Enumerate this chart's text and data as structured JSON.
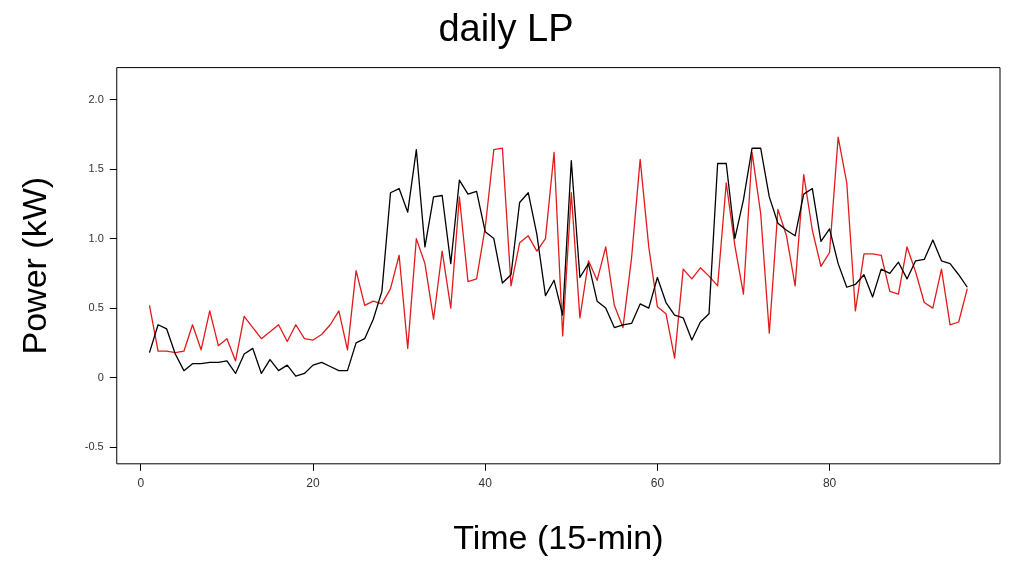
{
  "chart_data": {
    "type": "line",
    "title": "daily LP",
    "xlabel": "Time (15-min)",
    "ylabel": "Power (kW)",
    "x": [
      1,
      2,
      3,
      4,
      5,
      6,
      7,
      8,
      9,
      10,
      11,
      12,
      13,
      14,
      15,
      16,
      17,
      18,
      19,
      20,
      21,
      22,
      23,
      24,
      25,
      26,
      27,
      28,
      29,
      30,
      31,
      32,
      33,
      34,
      35,
      36,
      37,
      38,
      39,
      40,
      41,
      42,
      43,
      44,
      45,
      46,
      47,
      48,
      49,
      50,
      51,
      52,
      53,
      54,
      55,
      56,
      57,
      58,
      59,
      60,
      61,
      62,
      63,
      64,
      65,
      66,
      67,
      68,
      69,
      70,
      71,
      72,
      73,
      74,
      75,
      76,
      77,
      78,
      79,
      80,
      81,
      82,
      83,
      84,
      85,
      86,
      87,
      88,
      89,
      90,
      91,
      92,
      93,
      94,
      95,
      96
    ],
    "series": [
      {
        "color": "#000000",
        "values": [
          0.18,
          0.38,
          0.35,
          0.17,
          0.05,
          0.1,
          0.1,
          0.11,
          0.11,
          0.12,
          0.03,
          0.17,
          0.21,
          0.03,
          0.13,
          0.05,
          0.09,
          0.01,
          0.03,
          0.09,
          0.11,
          0.08,
          0.05,
          0.05,
          0.25,
          0.28,
          0.42,
          0.62,
          1.33,
          1.36,
          1.19,
          1.64,
          0.94,
          1.3,
          1.31,
          0.82,
          1.42,
          1.32,
          1.34,
          1.05,
          1.0,
          0.68,
          0.74,
          1.26,
          1.33,
          1.03,
          0.59,
          0.7,
          0.45,
          1.56,
          0.72,
          0.82,
          0.55,
          0.5,
          0.36,
          0.38,
          0.39,
          0.53,
          0.5,
          0.72,
          0.54,
          0.45,
          0.43,
          0.27,
          0.4,
          0.46,
          1.54,
          1.54,
          1.0,
          1.28,
          1.65,
          1.65,
          1.3,
          1.11,
          1.06,
          1.02,
          1.32,
          1.36,
          0.98,
          1.07,
          0.82,
          0.65,
          0.67,
          0.74,
          0.58,
          0.78,
          0.75,
          0.83,
          0.71,
          0.84,
          0.85,
          0.99,
          0.84,
          0.82,
          0.74,
          0.65
        ]
      },
      {
        "color": "#e31a1c",
        "values": [
          0.52,
          0.19,
          0.19,
          0.18,
          0.19,
          0.38,
          0.2,
          0.48,
          0.23,
          0.28,
          0.12,
          0.44,
          0.36,
          0.28,
          0.33,
          0.38,
          0.26,
          0.38,
          0.28,
          0.27,
          0.31,
          0.38,
          0.48,
          0.2,
          0.77,
          0.52,
          0.55,
          0.53,
          0.64,
          0.88,
          0.21,
          1.0,
          0.82,
          0.42,
          0.91,
          0.5,
          1.3,
          0.69,
          0.71,
          1.08,
          1.64,
          1.65,
          0.66,
          0.97,
          1.02,
          0.91,
          1.0,
          1.62,
          0.3,
          1.33,
          0.43,
          0.84,
          0.7,
          0.94,
          0.52,
          0.36,
          0.86,
          1.57,
          0.94,
          0.51,
          0.46,
          0.14,
          0.78,
          0.71,
          0.79,
          0.73,
          0.66,
          1.4,
          0.95,
          0.6,
          1.62,
          1.18,
          0.32,
          1.21,
          1.02,
          0.66,
          1.46,
          1.06,
          0.8,
          0.9,
          1.73,
          1.4,
          0.48,
          0.89,
          0.89,
          0.88,
          0.62,
          0.6,
          0.94,
          0.76,
          0.54,
          0.5,
          0.78,
          0.38,
          0.4,
          0.64
        ]
      }
    ],
    "xlim": [
      -2.8,
      99.8
    ],
    "xticks": [
      0,
      20,
      40,
      60,
      80
    ],
    "ylim": [
      -0.62,
      2.23
    ],
    "yticks": [
      -0.5,
      0,
      {
        "value": 0.5,
        "label": "0.5"
      },
      {
        "value": 1,
        "label": "1.0"
      },
      {
        "value": 1.5,
        "label": "1.5"
      },
      {
        "value": 2,
        "label": "2.0"
      }
    ],
    "grid": false,
    "legend": false,
    "marker": "none",
    "line_style": "solid"
  }
}
